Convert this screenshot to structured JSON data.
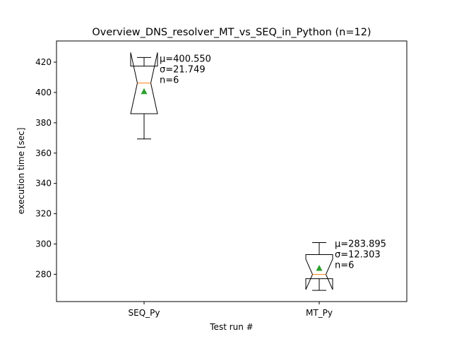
{
  "chart_data": {
    "type": "box",
    "title": "Overview_DNS_resolver_MT_vs_SEQ_in_Python (n=12)",
    "xlabel": "Test run #",
    "ylabel": "execution time [sec]",
    "ylim": [
      262,
      434
    ],
    "yticks": [
      280,
      300,
      320,
      340,
      360,
      380,
      400,
      420
    ],
    "categories": [
      "SEQ_Py",
      "MT_Py"
    ],
    "grid": false,
    "notched": true,
    "boxes": [
      {
        "name": "SEQ_Py",
        "whisker_low": 369.3,
        "q1": 386.0,
        "median": 406.2,
        "q3": 417.4,
        "whisker_high": 423.1,
        "notch_low": 386.0,
        "notch_high": 426.4,
        "mean": 400.55,
        "annotation": [
          "μ=400.550",
          "σ=21.749",
          "n=6"
        ]
      },
      {
        "name": "MT_Py",
        "whisker_low": 269.4,
        "q1": 277.1,
        "median": 279.9,
        "q3": 293.0,
        "whisker_high": 300.9,
        "notch_low": 269.9,
        "notch_high": 290.0,
        "mean": 283.895,
        "annotation": [
          "μ=283.895",
          "σ=12.303",
          "n=6"
        ]
      }
    ],
    "colors": {
      "box": "#000000",
      "median": "#ff7f0e",
      "mean_marker": "#2ca02c"
    }
  }
}
